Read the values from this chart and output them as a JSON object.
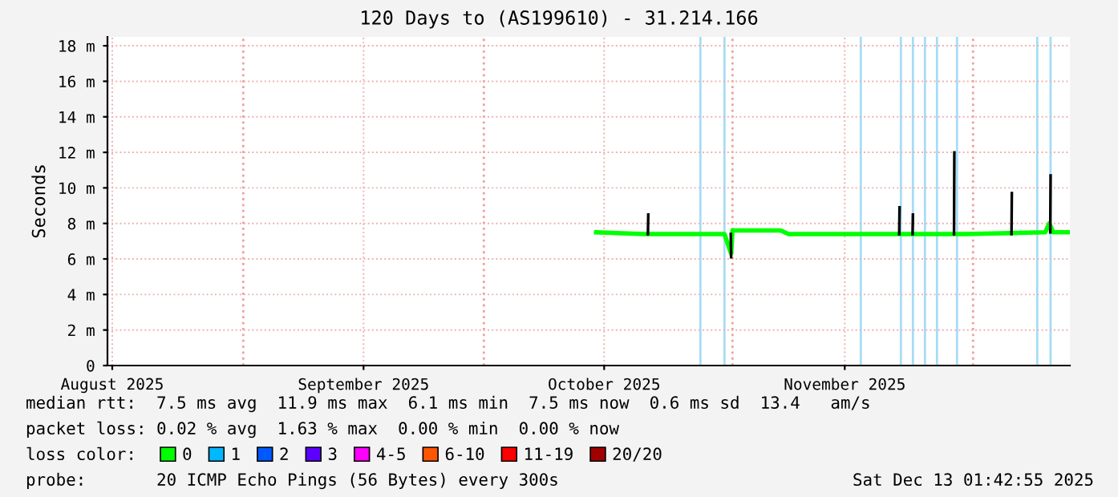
{
  "chart_data": {
    "type": "line",
    "title": "120 Days to (AS199610) - 31.214.166",
    "ylabel": "Seconds",
    "xlim": [
      "2025-08-15T01:42",
      "2025-12-13T01:42"
    ],
    "xticks": [
      {
        "value": "2025-08-15T16:00",
        "label": "August 2025"
      },
      {
        "value": "2025-09-16",
        "label": "September 2025"
      },
      {
        "value": "2025-10-16",
        "label": "October 2025"
      },
      {
        "value": "2025-11-15",
        "label": "November 2025"
      }
    ],
    "ylim": [
      0,
      18.5
    ],
    "yticks": [
      0,
      {
        "value": 2,
        "label": "2 m"
      },
      {
        "value": 4,
        "label": "4 m"
      },
      {
        "value": 6,
        "label": "6 m"
      },
      {
        "value": 8,
        "label": "8 m"
      },
      {
        "value": 10,
        "label": "10 m"
      },
      {
        "value": 12,
        "label": "12 m"
      },
      {
        "value": 14,
        "label": "14 m"
      },
      {
        "value": 16,
        "label": "16 m"
      },
      {
        "value": 18,
        "label": "18 m"
      }
    ],
    "grid": true,
    "legend": "bottom",
    "series": [
      {
        "name": "0",
        "color": "#00ff00",
        "x": [
          "2025-10-15",
          "2025-10-21",
          "2025-10-30",
          "2025-10-31",
          "2025-10-31T20:00",
          "2025-11-01",
          "2025-11-07",
          "2025-11-08",
          "2025-11-30",
          "2025-12-10",
          "2025-12-10T12:00",
          "2025-12-11",
          "2025-12-13"
        ],
        "values": [
          7.5,
          7.4,
          7.4,
          7.4,
          6.3,
          7.6,
          7.6,
          7.4,
          7.4,
          7.5,
          8.0,
          7.5,
          7.5
        ]
      },
      {
        "color": "#000000",
        "x": [
          "2025-10-21T11:00",
          "2025-10-21T12:00",
          "2025-10-21T13:00",
          "2025-10-31T19:00",
          "2025-10-31T20:00",
          "2025-10-31T21:00",
          "2025-11-21T19:00",
          "2025-11-21T20:00",
          "2025-11-21T21:00",
          "2025-11-23T11:00",
          "2025-11-23T12:00",
          "2025-11-23T13:00",
          "2025-11-28T15:00",
          "2025-11-28T16:00",
          "2025-11-28T17:00",
          "2025-12-05T19:00",
          "2025-12-05T20:00",
          "2025-12-05T21:00",
          "2025-12-10T15:00",
          "2025-12-10T16:00"
        ],
        "values": [
          7.4,
          8.5,
          null,
          7.4,
          6.1,
          null,
          7.4,
          8.9,
          null,
          7.4,
          8.5,
          null,
          7.4,
          12.0,
          null,
          7.4,
          9.7,
          null,
          7.5,
          10.7
        ]
      },
      {
        "name": "1",
        "color": "#00b8ff"
      },
      {
        "name": "2",
        "color": "#0059ff"
      },
      {
        "name": "3",
        "color": "#5e00ff"
      },
      {
        "name": "4-5",
        "color": "#ff00ff"
      },
      {
        "name": "6-10",
        "color": "#ff5500"
      },
      {
        "name": "11-19",
        "color": "#ff0000"
      },
      {
        "name": "20/20",
        "color": "#a10000"
      }
    ],
    "ref_lines": [
      {
        "axis": "x",
        "value": "2025-10-28",
        "color": "#a6dcf5"
      },
      {
        "axis": "x",
        "value": "2025-10-31",
        "color": "#a6dcf5"
      },
      {
        "axis": "x",
        "value": "2025-11-17",
        "color": "#a6dcf5"
      },
      {
        "axis": "x",
        "value": "2025-11-22",
        "color": "#a6dcf5"
      },
      {
        "axis": "x",
        "value": "2025-11-23T12:00",
        "color": "#a6dcf5"
      },
      {
        "axis": "x",
        "value": "2025-11-25",
        "color": "#a6dcf5"
      },
      {
        "axis": "x",
        "value": "2025-11-26T12:00",
        "color": "#a6dcf5"
      },
      {
        "axis": "x",
        "value": "2025-11-29",
        "color": "#a6dcf5"
      },
      {
        "axis": "x",
        "value": "2025-12-09",
        "color": "#a6dcf5"
      },
      {
        "axis": "x",
        "value": "2025-12-10T16:00",
        "color": "#a6dcf5"
      },
      {
        "axis": "x",
        "value": "2025-09-01",
        "color": "#f0a0a0",
        "line_style": "dotted"
      },
      {
        "axis": "x",
        "value": "2025-10-01",
        "color": "#f0a0a0",
        "line_style": "dotted"
      },
      {
        "axis": "x",
        "value": "2025-11-01",
        "color": "#f0a0a0",
        "line_style": "dotted"
      },
      {
        "axis": "x",
        "value": "2025-12-01",
        "color": "#f0a0a0",
        "line_style": "dotted"
      }
    ],
    "annotations": [
      "median rtt:  7.5 ms avg  11.9 ms max  6.1 ms min  7.5 ms now  0.6 ms sd  13.4   am/s",
      "packet loss: 0.02 % avg  1.63 % max  0.00 % min  0.00 % now",
      "loss color:",
      "probe:       20 ICMP Echo Pings (56 Bytes) every 300s",
      "Sat Dec 13 01:42:55 2025"
    ]
  }
}
